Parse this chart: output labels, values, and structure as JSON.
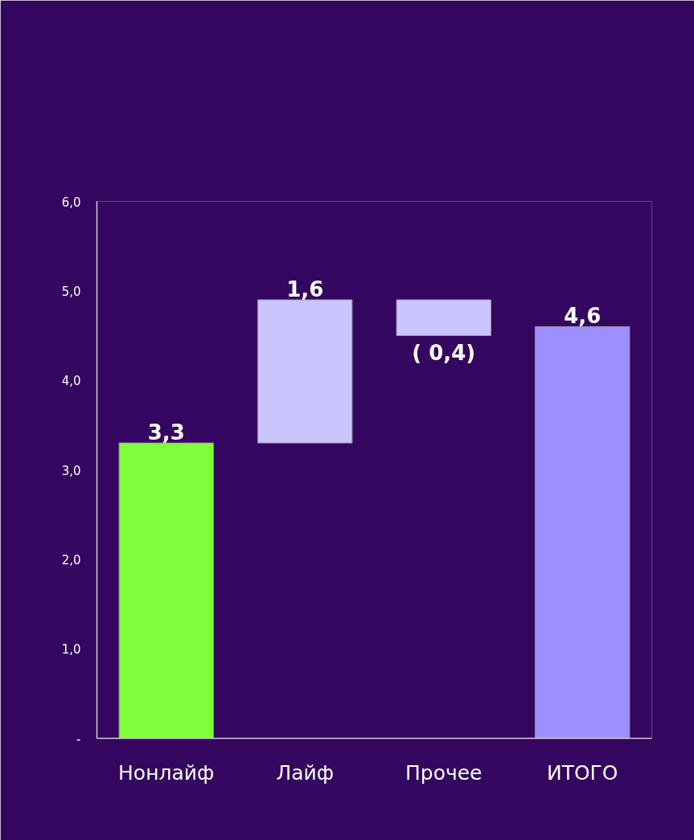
{
  "chart_data": {
    "type": "bar",
    "categories": [
      "Нонлайф",
      "Лайф",
      "Прочее",
      "ИТОГО"
    ],
    "values": [
      3.3,
      1.6,
      -0.4,
      4.6
    ],
    "base": [
      0,
      3.3,
      4.9,
      0
    ],
    "colors": [
      "#7fff3a",
      "#c9c6ff",
      "#c9c6ff",
      "#9d8fff"
    ],
    "value_labels": [
      "3,3",
      "1,6",
      "( 0,4)",
      "4,6"
    ],
    "ylim": [
      0,
      6
    ],
    "yticks": [
      {
        "value": 0,
        "label": "-"
      },
      {
        "value": 1,
        "label": "1,0"
      },
      {
        "value": 2,
        "label": "2,0"
      },
      {
        "value": 3,
        "label": "3,0"
      },
      {
        "value": 4,
        "label": "4,0"
      },
      {
        "value": 5,
        "label": "5,0"
      },
      {
        "value": 6,
        "label": "6,0"
      }
    ],
    "grid": false
  }
}
